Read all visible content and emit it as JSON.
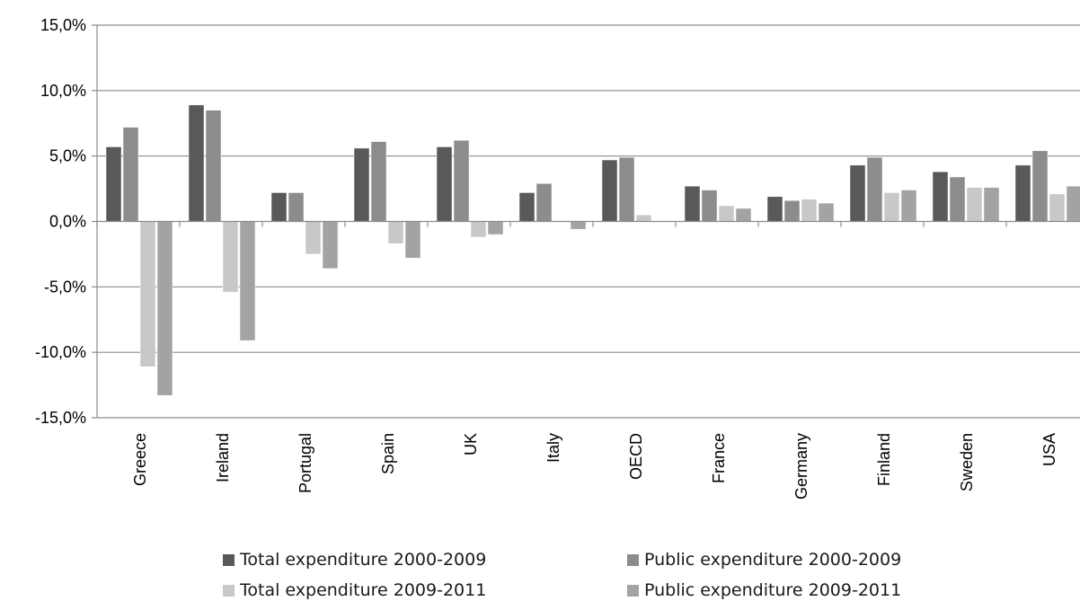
{
  "chart_data": {
    "type": "bar",
    "categories": [
      "Greece",
      "Ireland",
      "Portugal",
      "Spain",
      "UK",
      "Italy",
      "OECD",
      "France",
      "Germany",
      "Finland",
      "Sweden",
      "USA"
    ],
    "series": [
      {
        "name": "Total expenditure 2000-2009",
        "color": "#595959",
        "values": [
          5.7,
          8.9,
          2.2,
          5.6,
          5.7,
          2.2,
          4.7,
          2.7,
          1.9,
          4.3,
          3.8,
          4.3
        ]
      },
      {
        "name": "Public expenditure 2000-2009",
        "color": "#8c8c8c",
        "values": [
          7.2,
          8.5,
          2.2,
          6.1,
          6.2,
          2.9,
          4.9,
          2.4,
          1.6,
          4.9,
          3.4,
          5.4
        ]
      },
      {
        "name": "Total expenditure 2009-2011",
        "color": "#c8c8c8",
        "values": [
          -11.1,
          -5.4,
          -2.5,
          -1.7,
          -1.2,
          0.0,
          0.5,
          1.2,
          1.7,
          2.2,
          2.6,
          2.1
        ]
      },
      {
        "name": "Public expenditure 2009-2011",
        "color": "#a3a3a3",
        "values": [
          -13.3,
          -9.1,
          -3.6,
          -2.8,
          -1.0,
          -0.6,
          0.0,
          1.0,
          1.4,
          2.4,
          2.6,
          2.7
        ]
      }
    ],
    "ylim": [
      -15,
      15
    ],
    "yticks": [
      15,
      10,
      5,
      0,
      -5,
      -10,
      -15
    ],
    "ytick_labels": [
      "15,0%",
      "10,0%",
      "5,0%",
      "0,0%",
      "-5,0%",
      "-10,0%",
      "-15,0%"
    ],
    "grid": true,
    "legend_position": "bottom"
  }
}
